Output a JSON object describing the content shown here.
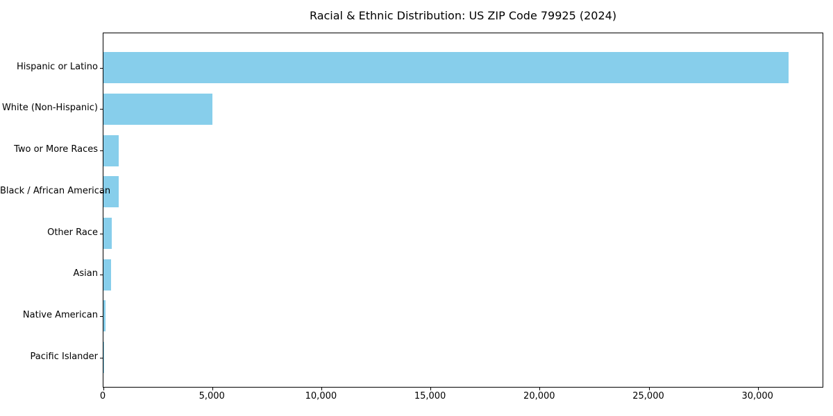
{
  "page": {
    "background": "#ffffff"
  },
  "chart_data": {
    "type": "bar",
    "orientation": "horizontal",
    "title": "Racial & Ethnic Distribution: US ZIP Code 79925 (2024)",
    "categories": [
      "Hispanic or Latino",
      "White (Non-Hispanic)",
      "Two or More Races",
      "Black / African American",
      "Other Race",
      "Asian",
      "Native American",
      "Pacific Islander"
    ],
    "values": [
      31400,
      4990,
      710,
      690,
      390,
      360,
      110,
      15
    ],
    "xlabel": "",
    "ylabel": "",
    "xlim": [
      0,
      33000
    ],
    "x_ticks": [
      0,
      5000,
      10000,
      15000,
      20000,
      25000,
      30000
    ],
    "x_tick_labels": [
      "0",
      "5,000",
      "10,000",
      "15,000",
      "20,000",
      "25,000",
      "30,000"
    ],
    "bar_color": "#87CEEB",
    "axis_color": "#000000",
    "text_color": "#000000",
    "grid": false,
    "legend_position": "none"
  }
}
